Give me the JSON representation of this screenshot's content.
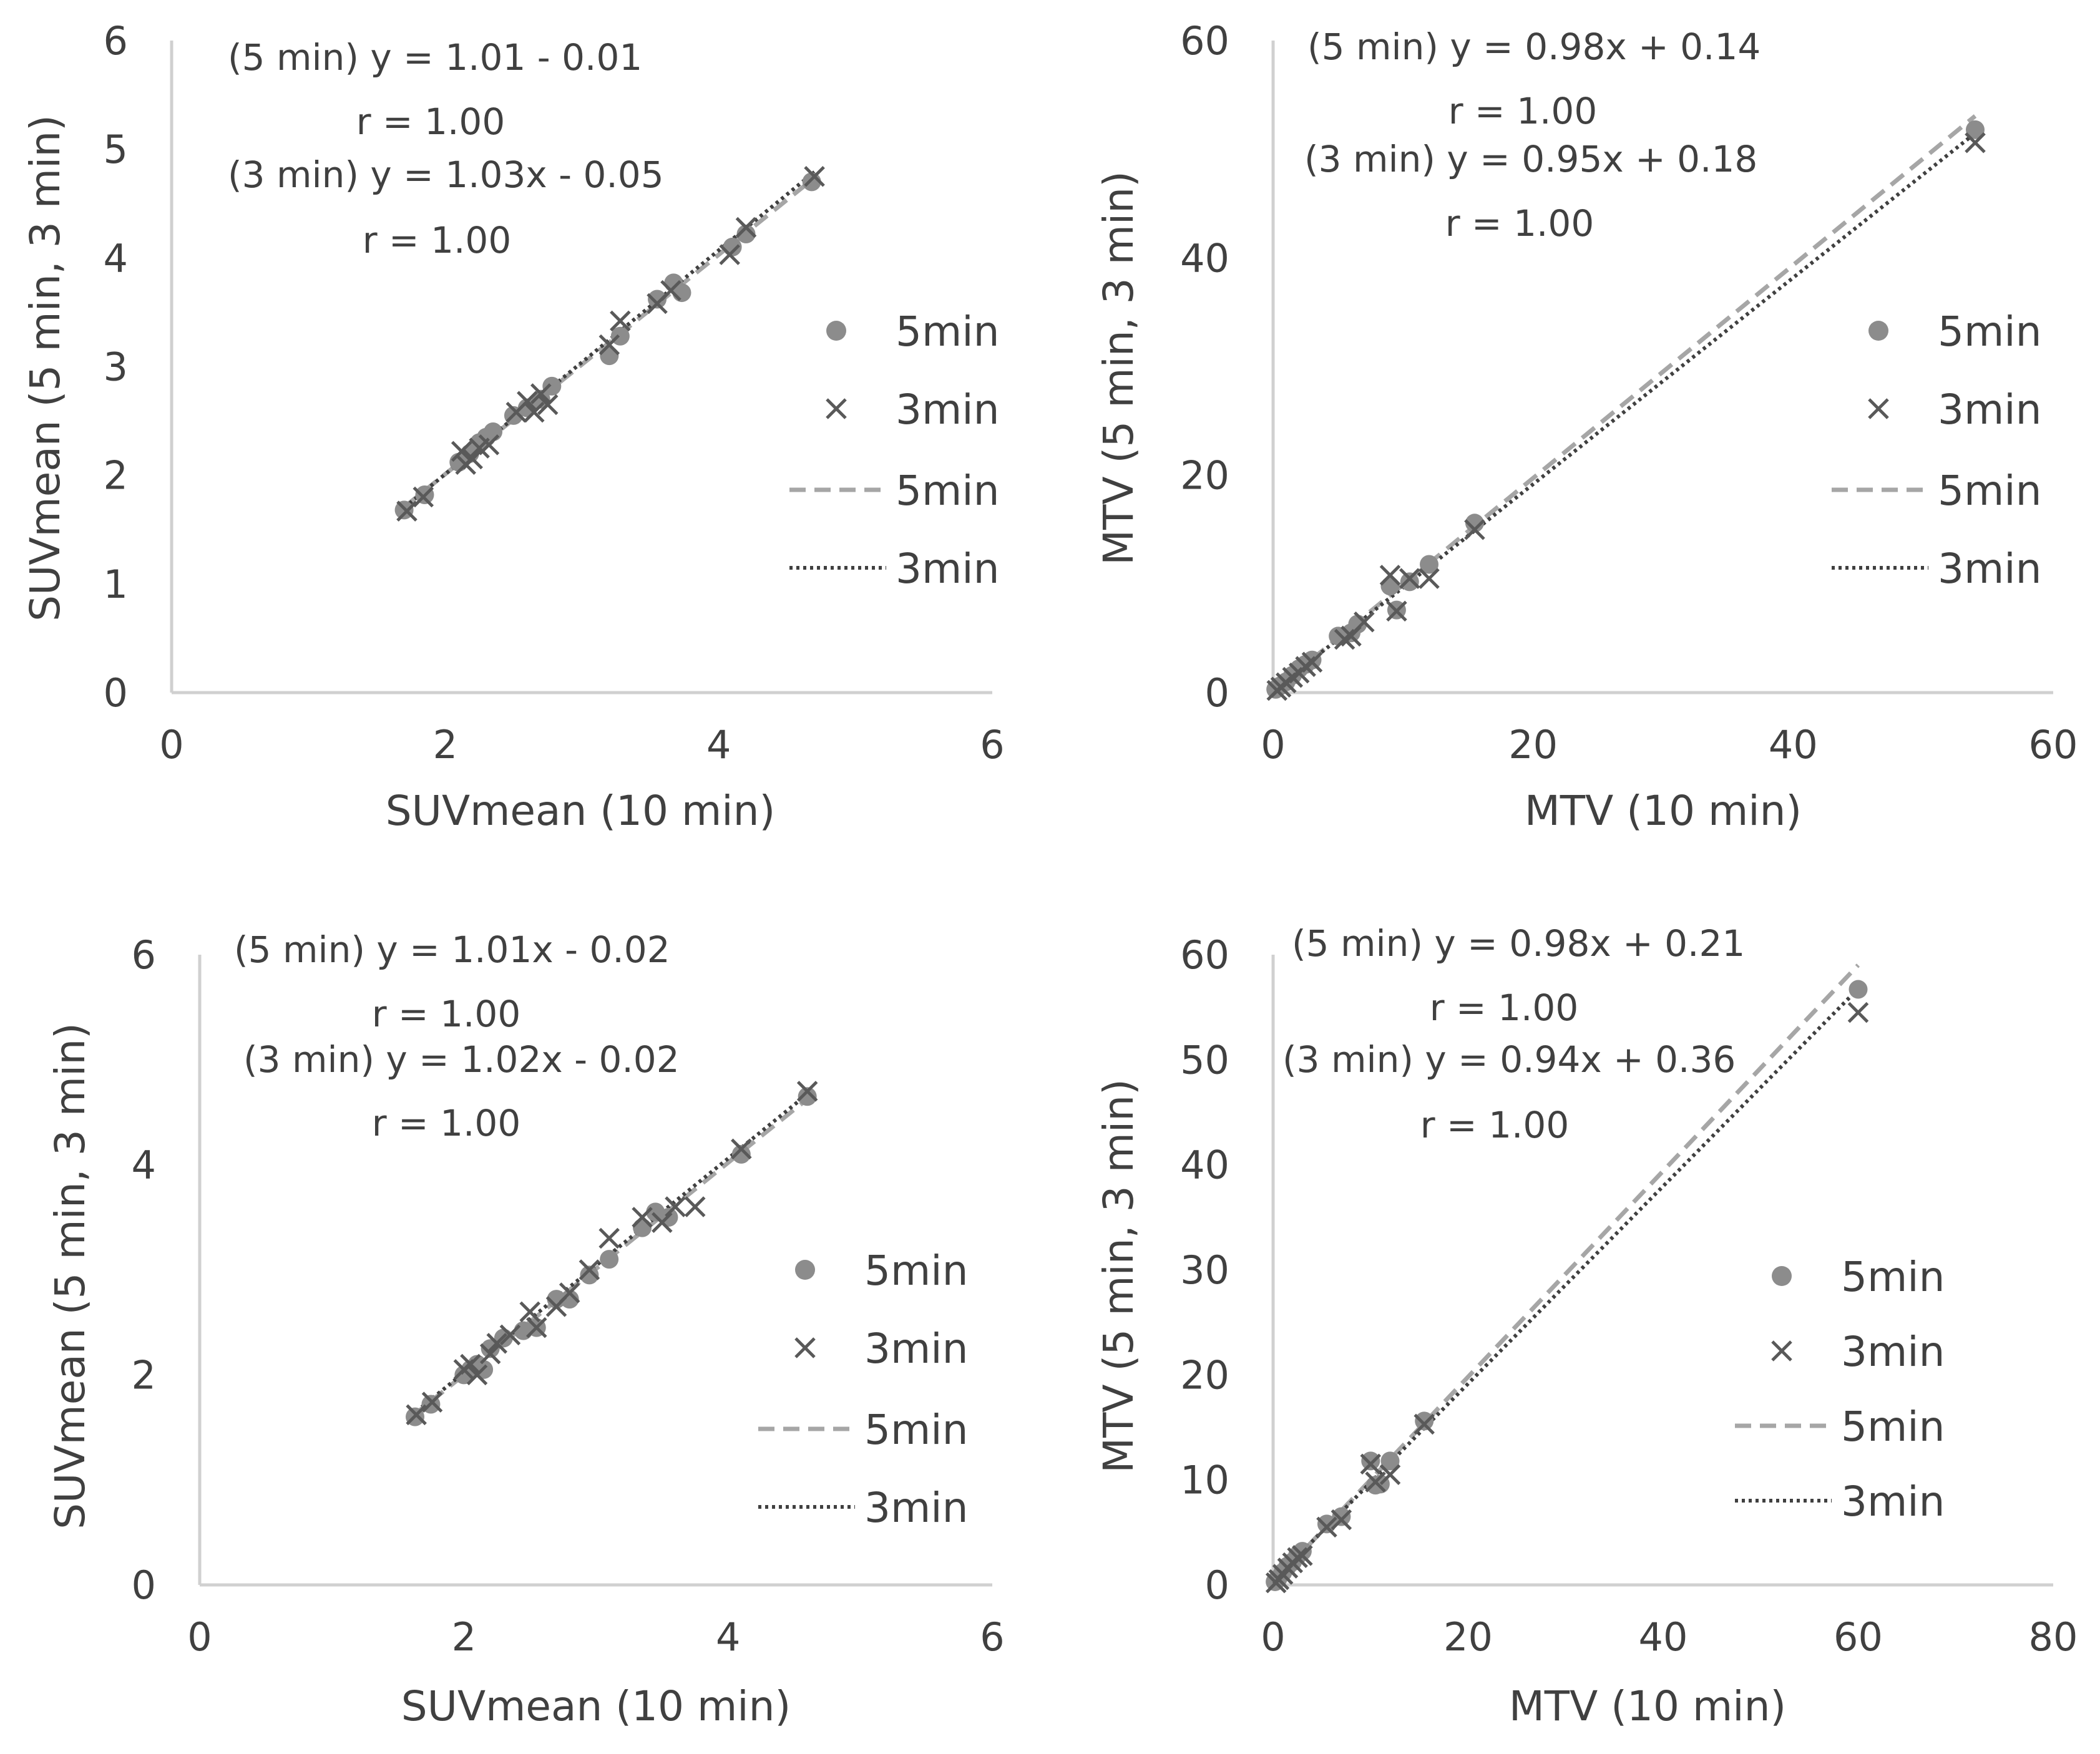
{
  "chart_data": [
    {
      "type": "scatter",
      "xlabel": "SUVmean (10 min)",
      "ylabel": "SUVmean (5 min, 3 min)",
      "xlim": [
        0,
        6
      ],
      "ylim": [
        0,
        6
      ],
      "xticks": [
        0,
        2,
        4,
        6
      ],
      "yticks": [
        0,
        1,
        2,
        3,
        4,
        5,
        6
      ],
      "annotations": [
        "(5 min) y = 1.01 - 0.01",
        "r = 1.00",
        "(3 min) y = 1.03x - 0.05",
        "r = 1.00"
      ],
      "legend": {
        "position": "right",
        "entries": [
          "5min",
          "3min",
          "5min",
          "3min"
        ]
      },
      "series": [
        {
          "name": "5min",
          "marker": "circle",
          "color": "#8c8c8c",
          "points": [
            [
              1.7,
              1.68
            ],
            [
              1.85,
              1.82
            ],
            [
              2.1,
              2.12
            ],
            [
              2.18,
              2.2
            ],
            [
              2.25,
              2.3
            ],
            [
              2.3,
              2.35
            ],
            [
              2.35,
              2.4
            ],
            [
              2.5,
              2.55
            ],
            [
              2.6,
              2.62
            ],
            [
              2.7,
              2.7
            ],
            [
              2.78,
              2.82
            ],
            [
              3.2,
              3.1
            ],
            [
              3.28,
              3.28
            ],
            [
              3.55,
              3.62
            ],
            [
              3.67,
              3.77
            ],
            [
              3.73,
              3.68
            ],
            [
              4.1,
              4.1
            ],
            [
              4.2,
              4.22
            ],
            [
              4.68,
              4.7
            ]
          ]
        },
        {
          "name": "3min",
          "marker": "x",
          "color": "#595959",
          "points": [
            [
              1.72,
              1.67
            ],
            [
              1.84,
              1.8
            ],
            [
              2.12,
              2.22
            ],
            [
              2.15,
              2.1
            ],
            [
              2.2,
              2.15
            ],
            [
              2.25,
              2.25
            ],
            [
              2.32,
              2.28
            ],
            [
              2.52,
              2.58
            ],
            [
              2.6,
              2.68
            ],
            [
              2.65,
              2.58
            ],
            [
              2.7,
              2.75
            ],
            [
              2.75,
              2.65
            ],
            [
              3.2,
              3.2
            ],
            [
              3.28,
              3.42
            ],
            [
              3.55,
              3.58
            ],
            [
              3.65,
              3.7
            ],
            [
              4.08,
              4.03
            ],
            [
              4.2,
              4.28
            ],
            [
              4.7,
              4.75
            ]
          ]
        },
        {
          "name": "5min",
          "type": "line",
          "style": "dashed",
          "color": "#a6a6a6",
          "slope": 1.01,
          "intercept": -0.01,
          "x_range": [
            1.7,
            4.7
          ]
        },
        {
          "name": "3min",
          "type": "line",
          "style": "dotted",
          "color": "#404040",
          "slope": 1.03,
          "intercept": -0.05,
          "x_range": [
            1.7,
            4.7
          ]
        }
      ]
    },
    {
      "type": "scatter",
      "xlabel": "MTV (10 min)",
      "ylabel": "MTV (5 min, 3 min)",
      "xlim": [
        0,
        60
      ],
      "ylim": [
        0,
        60
      ],
      "xticks": [
        0,
        20,
        40,
        60
      ],
      "yticks": [
        0,
        20,
        40,
        60
      ],
      "annotations": [
        "(5 min) y = 0.98x + 0.14",
        "r = 1.00",
        "(3 min) y = 0.95x + 0.18",
        "r = 1.00"
      ],
      "legend": {
        "position": "right",
        "entries": [
          "5min",
          "3min",
          "5min",
          "3min"
        ]
      },
      "series": [
        {
          "name": "5min",
          "marker": "circle",
          "color": "#8c8c8c",
          "points": [
            [
              0.2,
              0.3
            ],
            [
              0.5,
              0.6
            ],
            [
              1,
              1
            ],
            [
              1.5,
              1.6
            ],
            [
              2,
              2.2
            ],
            [
              2.5,
              2.6
            ],
            [
              3,
              3
            ],
            [
              5,
              5.2
            ],
            [
              6,
              5.5
            ],
            [
              6.5,
              6.3
            ],
            [
              9,
              9.8
            ],
            [
              9.5,
              7.6
            ],
            [
              10.5,
              10.2
            ],
            [
              12,
              11.8
            ],
            [
              15.5,
              15.6
            ],
            [
              54,
              51.8
            ]
          ]
        },
        {
          "name": "3min",
          "marker": "x",
          "color": "#595959",
          "points": [
            [
              0.3,
              0.2
            ],
            [
              0.6,
              0.5
            ],
            [
              1,
              0.9
            ],
            [
              1.5,
              1.4
            ],
            [
              2,
              1.8
            ],
            [
              2.5,
              2.4
            ],
            [
              3,
              2.8
            ],
            [
              5.5,
              4.9
            ],
            [
              6,
              5.2
            ],
            [
              7,
              6.5
            ],
            [
              9,
              10.8
            ],
            [
              9.5,
              7.5
            ],
            [
              10.5,
              10.5
            ],
            [
              12,
              10.5
            ],
            [
              15.5,
              15
            ],
            [
              54,
              50.6
            ]
          ]
        },
        {
          "name": "5min",
          "type": "line",
          "style": "dashed",
          "color": "#a6a6a6",
          "slope": 0.98,
          "intercept": 0.14,
          "x_range": [
            0,
            54
          ]
        },
        {
          "name": "3min",
          "type": "line",
          "style": "dotted",
          "color": "#404040",
          "slope": 0.95,
          "intercept": 0.18,
          "x_range": [
            0,
            54
          ]
        }
      ]
    },
    {
      "type": "scatter",
      "xlabel": "SUVmean (10 min)",
      "ylabel": "SUVmean (5 min, 3 min)",
      "xlim": [
        0,
        6
      ],
      "ylim": [
        0,
        6
      ],
      "xticks": [
        0,
        2,
        4,
        6
      ],
      "yticks": [
        0,
        2,
        4,
        6
      ],
      "annotations": [
        "(5 min) y = 1.01x - 0.02",
        "r = 1.00",
        "(3 min) y = 1.02x - 0.02",
        "r = 1.00"
      ],
      "legend": {
        "position": "right",
        "entries": [
          "5min",
          "3min",
          "5min",
          "3min"
        ]
      },
      "series": [
        {
          "name": "5min",
          "marker": "circle",
          "color": "#8c8c8c",
          "points": [
            [
              1.63,
              1.6
            ],
            [
              1.75,
              1.72
            ],
            [
              2.0,
              2.0
            ],
            [
              2.05,
              2.05
            ],
            [
              2.1,
              2.1
            ],
            [
              2.15,
              2.05
            ],
            [
              2.2,
              2.25
            ],
            [
              2.3,
              2.35
            ],
            [
              2.45,
              2.42
            ],
            [
              2.55,
              2.45
            ],
            [
              2.7,
              2.72
            ],
            [
              2.8,
              2.72
            ],
            [
              2.95,
              2.95
            ],
            [
              3.1,
              3.1
            ],
            [
              3.35,
              3.4
            ],
            [
              3.45,
              3.55
            ],
            [
              3.55,
              3.5
            ],
            [
              4.1,
              4.1
            ],
            [
              4.6,
              4.65
            ]
          ]
        },
        {
          "name": "3min",
          "marker": "x",
          "color": "#595959",
          "points": [
            [
              1.64,
              1.62
            ],
            [
              1.76,
              1.74
            ],
            [
              2.0,
              2.05
            ],
            [
              2.05,
              2.1
            ],
            [
              2.1,
              2.0
            ],
            [
              2.2,
              2.2
            ],
            [
              2.25,
              2.3
            ],
            [
              2.35,
              2.38
            ],
            [
              2.5,
              2.6
            ],
            [
              2.55,
              2.45
            ],
            [
              2.7,
              2.65
            ],
            [
              2.8,
              2.78
            ],
            [
              2.95,
              3.0
            ],
            [
              3.1,
              3.3
            ],
            [
              3.35,
              3.5
            ],
            [
              3.5,
              3.45
            ],
            [
              3.6,
              3.6
            ],
            [
              3.75,
              3.6
            ],
            [
              4.1,
              4.15
            ],
            [
              4.6,
              4.7
            ]
          ]
        },
        {
          "name": "5min",
          "type": "line",
          "style": "dashed",
          "color": "#a6a6a6",
          "slope": 1.01,
          "intercept": -0.02,
          "x_range": [
            1.6,
            4.6
          ]
        },
        {
          "name": "3min",
          "type": "line",
          "style": "dotted",
          "color": "#404040",
          "slope": 1.02,
          "intercept": -0.02,
          "x_range": [
            1.6,
            4.6
          ]
        }
      ]
    },
    {
      "type": "scatter",
      "xlabel": "MTV (10 min)",
      "ylabel": "MTV (5 min, 3 min)",
      "xlim": [
        0,
        80
      ],
      "ylim": [
        0,
        60
      ],
      "xticks": [
        0,
        20,
        40,
        60,
        80
      ],
      "yticks": [
        0,
        10,
        20,
        30,
        40,
        50,
        60
      ],
      "annotations": [
        "(5 min) y = 0.98x + 0.21",
        "r = 1.00",
        "(3 min) y = 0.94x + 0.36",
        "r = 1.00"
      ],
      "legend": {
        "position": "right",
        "entries": [
          "5min",
          "3min",
          "5min",
          "3min"
        ]
      },
      "series": [
        {
          "name": "5min",
          "marker": "circle",
          "color": "#8c8c8c",
          "points": [
            [
              0.2,
              0.3
            ],
            [
              0.5,
              0.6
            ],
            [
              1,
              1.2
            ],
            [
              1.5,
              1.8
            ],
            [
              2,
              2.2
            ],
            [
              2.5,
              2.8
            ],
            [
              3,
              3.2
            ],
            [
              5.5,
              5.8
            ],
            [
              7,
              6.5
            ],
            [
              10,
              11.8
            ],
            [
              10.5,
              9.5
            ],
            [
              11,
              9.6
            ],
            [
              12,
              11.8
            ],
            [
              15.5,
              15.6
            ],
            [
              60,
              56.7
            ]
          ]
        },
        {
          "name": "3min",
          "marker": "x",
          "color": "#595959",
          "points": [
            [
              0.3,
              0.2
            ],
            [
              0.6,
              0.5
            ],
            [
              1,
              1
            ],
            [
              1.5,
              1.6
            ],
            [
              2,
              2.1
            ],
            [
              2.5,
              2.6
            ],
            [
              3,
              2.8
            ],
            [
              5.5,
              5.5
            ],
            [
              7,
              6.2
            ],
            [
              10,
              11.5
            ],
            [
              10.5,
              9.8
            ],
            [
              12,
              10.5
            ],
            [
              15.5,
              15.3
            ],
            [
              60,
              54.5
            ]
          ]
        },
        {
          "name": "5min",
          "type": "line",
          "style": "dashed",
          "color": "#a6a6a6",
          "slope": 0.98,
          "intercept": 0.21,
          "x_range": [
            0,
            60
          ]
        },
        {
          "name": "3min",
          "type": "line",
          "style": "dotted",
          "color": "#404040",
          "slope": 0.94,
          "intercept": 0.36,
          "x_range": [
            0,
            60
          ]
        }
      ]
    }
  ]
}
